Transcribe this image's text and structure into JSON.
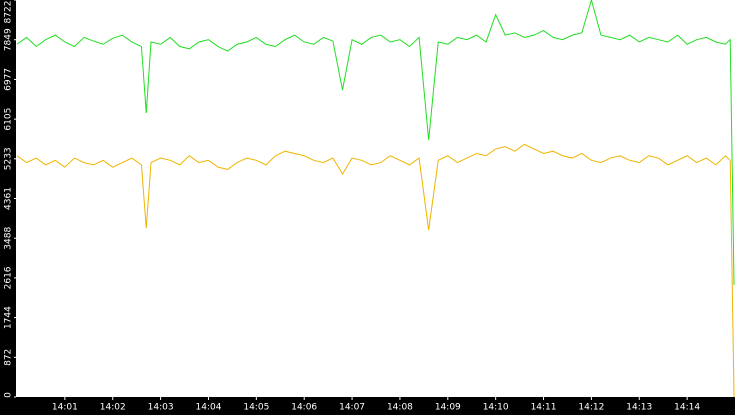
{
  "chart_data": {
    "type": "line",
    "x": [
      0,
      0.2,
      0.4,
      0.6,
      0.8,
      1,
      1.2,
      1.4,
      1.6,
      1.8,
      2,
      2.2,
      2.4,
      2.6,
      2.7,
      2.8,
      3,
      3.2,
      3.4,
      3.6,
      3.8,
      4,
      4.2,
      4.4,
      4.6,
      4.8,
      5,
      5.2,
      5.4,
      5.6,
      5.8,
      6,
      6.2,
      6.4,
      6.6,
      6.8,
      7,
      7.2,
      7.4,
      7.6,
      7.8,
      8,
      8.2,
      8.4,
      8.6,
      8.8,
      9,
      9.2,
      9.4,
      9.6,
      9.8,
      10,
      10.2,
      10.4,
      10.6,
      10.8,
      11,
      11.2,
      11.4,
      11.6,
      11.8,
      12,
      12.2,
      12.4,
      12.6,
      12.8,
      13,
      13.2,
      13.4,
      13.6,
      13.8,
      14,
      14.2,
      14.4,
      14.6,
      14.8,
      14.9,
      14.98
    ],
    "series": [
      {
        "color": "#22dd22",
        "values": [
          7750,
          7900,
          7700,
          7850,
          7950,
          7800,
          7700,
          7900,
          7820,
          7750,
          7880,
          7950,
          7800,
          7700,
          6240,
          7800,
          7750,
          7900,
          7700,
          7650,
          7800,
          7850,
          7700,
          7600,
          7750,
          7800,
          7900,
          7750,
          7700,
          7850,
          7950,
          7800,
          7750,
          7900,
          7820,
          6745,
          7850,
          7750,
          7900,
          7950,
          7800,
          7850,
          7700,
          7900,
          5646,
          7800,
          7750,
          7900,
          7850,
          7950,
          7800,
          8400,
          7950,
          8000,
          7900,
          7950,
          8050,
          7900,
          7850,
          7950,
          8000,
          8722,
          7950,
          7900,
          7850,
          7950,
          7800,
          7900,
          7850,
          7800,
          7950,
          7750,
          7850,
          7900,
          7800,
          7750,
          7850,
          2460
        ]
      },
      {
        "color": "#f0b400",
        "values": [
          5300,
          5150,
          5250,
          5100,
          5200,
          5050,
          5250,
          5150,
          5100,
          5200,
          5050,
          5150,
          5250,
          5100,
          3713,
          5150,
          5250,
          5200,
          5100,
          5300,
          5150,
          5200,
          5050,
          5000,
          5150,
          5250,
          5200,
          5100,
          5300,
          5400,
          5350,
          5300,
          5200,
          5150,
          5250,
          4900,
          5250,
          5200,
          5100,
          5150,
          5300,
          5200,
          5100,
          5250,
          3669,
          5200,
          5300,
          5150,
          5250,
          5350,
          5300,
          5450,
          5500,
          5400,
          5550,
          5450,
          5350,
          5400,
          5300,
          5250,
          5350,
          5200,
          5150,
          5250,
          5300,
          5200,
          5150,
          5300,
          5250,
          5100,
          5200,
          5300,
          5150,
          5250,
          5100,
          5300,
          5200,
          0
        ]
      }
    ],
    "xlim": [
      0,
      15
    ],
    "xticks": [
      {
        "value": 1,
        "label": "14:01"
      },
      {
        "value": 2,
        "label": "14:02"
      },
      {
        "value": 3,
        "label": "14:03"
      },
      {
        "value": 4,
        "label": "14:04"
      },
      {
        "value": 5,
        "label": "14:05"
      },
      {
        "value": 6,
        "label": "14:06"
      },
      {
        "value": 7,
        "label": "14:07"
      },
      {
        "value": 8,
        "label": "14:08"
      },
      {
        "value": 9,
        "label": "14:09"
      },
      {
        "value": 10,
        "label": "14:10"
      },
      {
        "value": 11,
        "label": "14:11"
      },
      {
        "value": 12,
        "label": "14:12"
      },
      {
        "value": 13,
        "label": "14:13"
      },
      {
        "value": 14,
        "label": "14:14"
      }
    ],
    "ylim": [
      0,
      8722
    ],
    "yticks": [
      0,
      872,
      1744,
      2616,
      3488,
      4361,
      5233,
      6105,
      6977,
      7849,
      8722
    ],
    "grid": false
  }
}
